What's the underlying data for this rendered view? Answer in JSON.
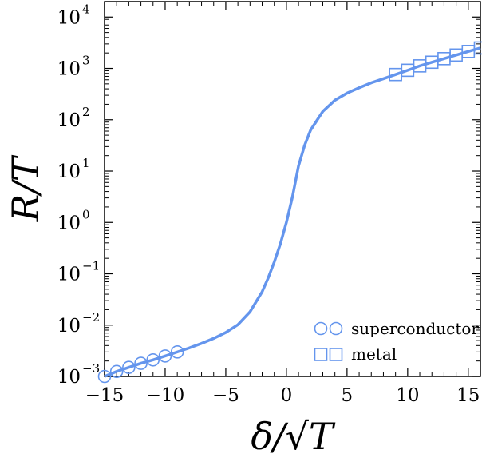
{
  "chart_data": {
    "type": "line",
    "xlabel": "δ/√T",
    "ylabel": "R/T",
    "xlim": [
      -15,
      16
    ],
    "ylim_log10": [
      -3,
      4.3
    ],
    "yscale": "log",
    "grid": false,
    "legend_position": "lower-right",
    "x_ticks": [
      -15,
      -10,
      -5,
      0,
      5,
      10,
      15
    ],
    "x_tick_labels": [
      "−15",
      "−10",
      "−5",
      "0",
      "5",
      "10",
      "15"
    ],
    "y_ticks_log10": [
      -3,
      -2,
      -1,
      0,
      1,
      2,
      3,
      4
    ],
    "y_tick_labels": [
      {
        "base": "10",
        "exp": "−3"
      },
      {
        "base": "10",
        "exp": "−2"
      },
      {
        "base": "10",
        "exp": "−1"
      },
      {
        "base": "10",
        "exp": "0"
      },
      {
        "base": "10",
        "exp": "1"
      },
      {
        "base": "10",
        "exp": "2"
      },
      {
        "base": "10",
        "exp": "3"
      },
      {
        "base": "10",
        "exp": "4"
      }
    ],
    "color": "#6495ed",
    "curve": {
      "x": [
        -15,
        -14,
        -13,
        -12,
        -11,
        -10,
        -9,
        -8,
        -7,
        -6,
        -5,
        -4,
        -3,
        -2,
        -1.5,
        -1,
        -0.5,
        0,
        0.5,
        1,
        1.5,
        2,
        3,
        4,
        5,
        6,
        7,
        8,
        9,
        10,
        11,
        12,
        13,
        14,
        15,
        16
      ],
      "y": [
        0.001,
        0.00125,
        0.0015,
        0.0018,
        0.0021,
        0.0025,
        0.003,
        0.0036,
        0.0044,
        0.0055,
        0.0072,
        0.0102,
        0.0182,
        0.0447,
        0.0832,
        0.17,
        0.38,
        1.0,
        3.16,
        12.6,
        31.6,
        63.1,
        145,
        240,
        330,
        420,
        525,
        630,
        760,
        920,
        1120,
        1320,
        1550,
        1820,
        2140,
        2500
      ]
    },
    "series": [
      {
        "name": "superconductor",
        "marker": "circle",
        "x": [
          -15,
          -14,
          -13,
          -12,
          -11,
          -10,
          -9
        ],
        "y": [
          0.001,
          0.00125,
          0.0015,
          0.0018,
          0.0021,
          0.0025,
          0.003
        ]
      },
      {
        "name": "metal",
        "marker": "square",
        "x": [
          9,
          10,
          11,
          12,
          13,
          14,
          15,
          16
        ],
        "y": [
          760,
          920,
          1120,
          1320,
          1550,
          1820,
          2140,
          2500
        ]
      }
    ]
  }
}
